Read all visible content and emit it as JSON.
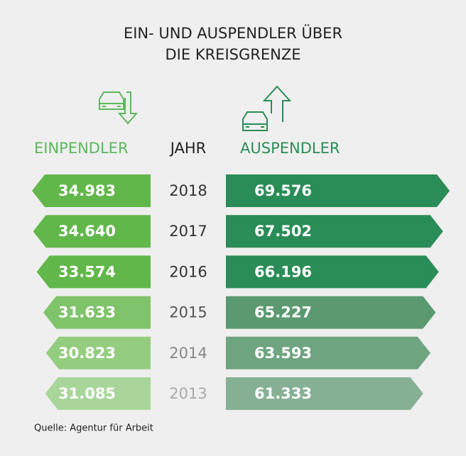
{
  "chart_data": {
    "type": "bar",
    "title": [
      "EIN- UND AUSPENDLER ÜBER",
      "DIE KREISGRENZE"
    ],
    "category_label": "JAHR",
    "categories": [
      "2018",
      "2017",
      "2016",
      "2015",
      "2014",
      "2013"
    ],
    "category_colors": [
      "#333333",
      "#333333",
      "#333333",
      "#555555",
      "#888888",
      "#aaaaaa"
    ],
    "series": [
      {
        "name": "EINPENDLER",
        "color": "#5cb85c",
        "colors": [
          "#62b74a",
          "#62b74a",
          "#62b74a",
          "#7fc36a",
          "#94cd7f",
          "#a8d69a"
        ],
        "values": [
          34983,
          34640,
          33574,
          31633,
          30823,
          31085
        ],
        "value_labels": [
          "34.983",
          "34.640",
          "33.574",
          "31.633",
          "30.823",
          "31.085"
        ]
      },
      {
        "name": "AUSPENDLER",
        "color": "#2a8c57",
        "colors": [
          "#2a8c57",
          "#2a8c57",
          "#2a8c57",
          "#5b9a70",
          "#6fa480",
          "#86b094"
        ],
        "values": [
          69576,
          67502,
          66196,
          65227,
          63593,
          61333
        ],
        "value_labels": [
          "69.576",
          "67.502",
          "66.196",
          "65.227",
          "63.593",
          "61.333"
        ]
      }
    ],
    "source": "Quelle: Agentur für Arbeit"
  }
}
